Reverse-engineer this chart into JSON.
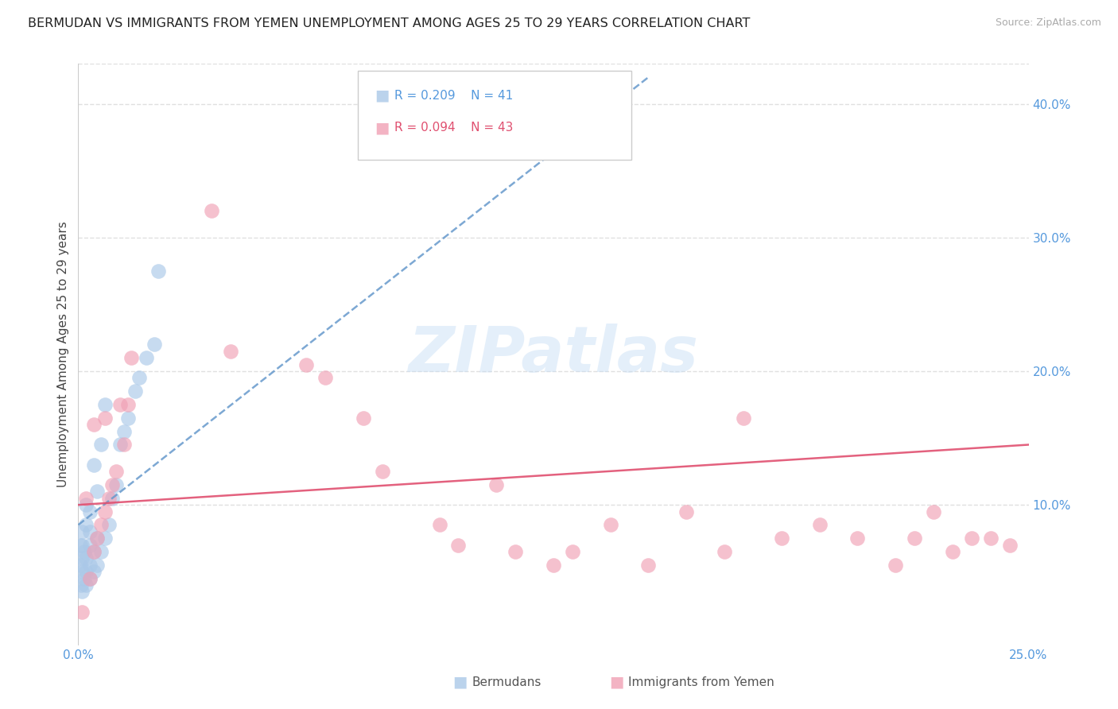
{
  "title": "BERMUDAN VS IMMIGRANTS FROM YEMEN UNEMPLOYMENT AMONG AGES 25 TO 29 YEARS CORRELATION CHART",
  "source": "Source: ZipAtlas.com",
  "ylabel": "Unemployment Among Ages 25 to 29 years",
  "xlim": [
    0.0,
    0.25
  ],
  "ylim": [
    -0.005,
    0.43
  ],
  "xticks": [
    0.0,
    0.05,
    0.1,
    0.15,
    0.2,
    0.25
  ],
  "xtick_labels": [
    "0.0%",
    "",
    "",
    "",
    "",
    "25.0%"
  ],
  "yticks_right": [
    0.1,
    0.2,
    0.3,
    0.4
  ],
  "ytick_labels_right": [
    "10.0%",
    "20.0%",
    "30.0%",
    "40.0%"
  ],
  "bermudans_x": [
    0.0005,
    0.0005,
    0.0008,
    0.001,
    0.001,
    0.001,
    0.001,
    0.001,
    0.0015,
    0.0015,
    0.002,
    0.002,
    0.002,
    0.002,
    0.002,
    0.003,
    0.003,
    0.003,
    0.003,
    0.003,
    0.004,
    0.004,
    0.004,
    0.005,
    0.005,
    0.005,
    0.006,
    0.006,
    0.007,
    0.007,
    0.008,
    0.009,
    0.01,
    0.011,
    0.012,
    0.013,
    0.015,
    0.016,
    0.018,
    0.02,
    0.021
  ],
  "bermudans_y": [
    0.055,
    0.07,
    0.04,
    0.05,
    0.06,
    0.07,
    0.08,
    0.035,
    0.045,
    0.065,
    0.04,
    0.05,
    0.06,
    0.085,
    0.1,
    0.045,
    0.055,
    0.07,
    0.08,
    0.095,
    0.05,
    0.065,
    0.13,
    0.055,
    0.075,
    0.11,
    0.065,
    0.145,
    0.075,
    0.175,
    0.085,
    0.105,
    0.115,
    0.145,
    0.155,
    0.165,
    0.185,
    0.195,
    0.21,
    0.22,
    0.275
  ],
  "yemen_x": [
    0.001,
    0.002,
    0.003,
    0.004,
    0.004,
    0.005,
    0.006,
    0.007,
    0.007,
    0.008,
    0.009,
    0.01,
    0.011,
    0.012,
    0.013,
    0.014,
    0.035,
    0.04,
    0.06,
    0.065,
    0.075,
    0.08,
    0.095,
    0.1,
    0.11,
    0.115,
    0.125,
    0.13,
    0.14,
    0.15,
    0.16,
    0.17,
    0.175,
    0.185,
    0.195,
    0.205,
    0.215,
    0.22,
    0.225,
    0.23,
    0.235,
    0.24,
    0.245
  ],
  "yemen_y": [
    0.02,
    0.105,
    0.045,
    0.16,
    0.065,
    0.075,
    0.085,
    0.095,
    0.165,
    0.105,
    0.115,
    0.125,
    0.175,
    0.145,
    0.175,
    0.21,
    0.32,
    0.215,
    0.205,
    0.195,
    0.165,
    0.125,
    0.085,
    0.07,
    0.115,
    0.065,
    0.055,
    0.065,
    0.085,
    0.055,
    0.095,
    0.065,
    0.165,
    0.075,
    0.085,
    0.075,
    0.055,
    0.075,
    0.095,
    0.065,
    0.075,
    0.075,
    0.07
  ],
  "blue_color": "#aac8e8",
  "pink_color": "#f0a0b5",
  "trend_blue_color": "#6699cc",
  "trend_pink_color": "#e05070",
  "grid_color": "#e0e0e0",
  "background_color": "#ffffff",
  "title_fontsize": 11.5,
  "axis_label_color": "#5599dd",
  "ylabel_color": "#444444",
  "watermark": "ZIPatlas",
  "R_blue": "0.209",
  "N_blue": "41",
  "R_pink": "0.094",
  "N_pink": "43"
}
